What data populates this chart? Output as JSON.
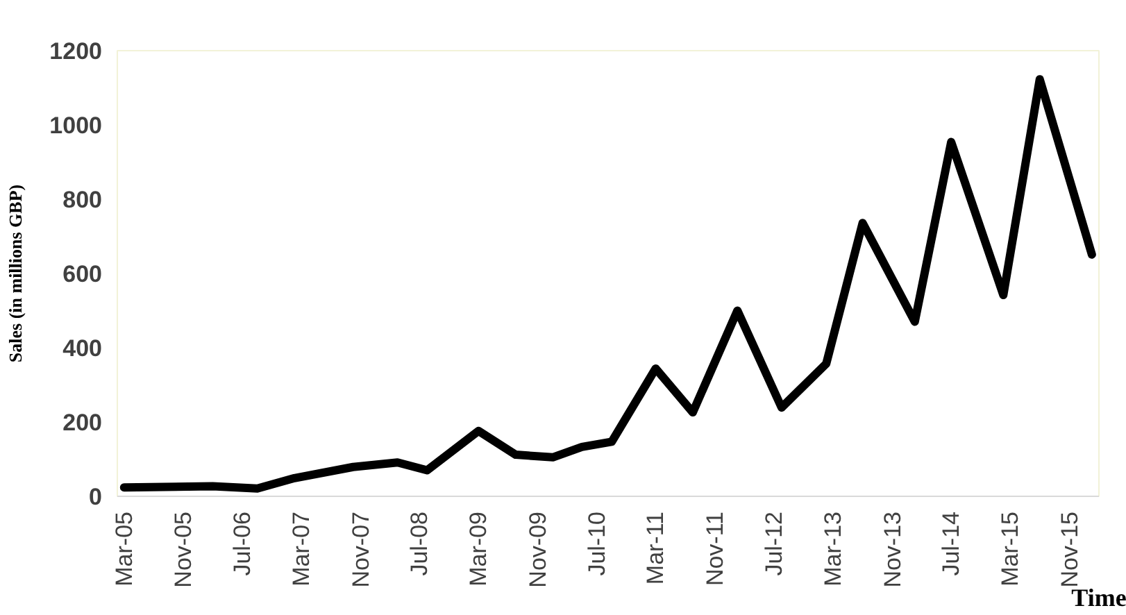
{
  "chart_data": {
    "type": "line",
    "xlabel": "Time",
    "ylabel": "Sales (in millions GBP)",
    "x": [
      "2005-03",
      "2006-03",
      "2006-09",
      "2007-02",
      "2007-10",
      "2008-04",
      "2008-08",
      "2009-03",
      "2009-08",
      "2010-01",
      "2010-05",
      "2010-09",
      "2011-03",
      "2011-08",
      "2012-02",
      "2012-08",
      "2013-02",
      "2013-07",
      "2014-02",
      "2014-07",
      "2015-02",
      "2015-07",
      "2016-02"
    ],
    "series": [
      {
        "color": "#000000",
        "values": [
          24,
          27,
          21,
          49,
          79,
          91,
          70,
          176,
          112,
          105,
          133,
          147,
          344,
          226,
          500,
          239,
          357,
          736,
          470,
          954,
          542,
          1123,
          651
        ]
      }
    ],
    "xlim": [
      "2005-02",
      "2016-03"
    ],
    "xticks": [
      {
        "value": "2005-03",
        "label": "Mar-05"
      },
      {
        "value": "2005-11",
        "label": "Nov-05"
      },
      {
        "value": "2006-07",
        "label": "Jul-06"
      },
      {
        "value": "2007-03",
        "label": "Mar-07"
      },
      {
        "value": "2007-11",
        "label": "Nov-07"
      },
      {
        "value": "2008-07",
        "label": "Jul-08"
      },
      {
        "value": "2009-03",
        "label": "Mar-09"
      },
      {
        "value": "2009-11",
        "label": "Nov-09"
      },
      {
        "value": "2010-07",
        "label": "Jul-10"
      },
      {
        "value": "2011-03",
        "label": "Mar-11"
      },
      {
        "value": "2011-11",
        "label": "Nov-11"
      },
      {
        "value": "2012-07",
        "label": "Jul-12"
      },
      {
        "value": "2013-03",
        "label": "Mar-13"
      },
      {
        "value": "2013-11",
        "label": "Nov-13"
      },
      {
        "value": "2014-07",
        "label": "Jul-14"
      },
      {
        "value": "2015-03",
        "label": "Mar-15"
      },
      {
        "value": "2015-11",
        "label": "Nov-15"
      }
    ],
    "ylim": [
      0,
      1200
    ],
    "yticks": [
      0,
      200,
      400,
      600,
      800,
      1000,
      1200
    ],
    "grid": false,
    "marker": "none",
    "line_style": "solid"
  }
}
